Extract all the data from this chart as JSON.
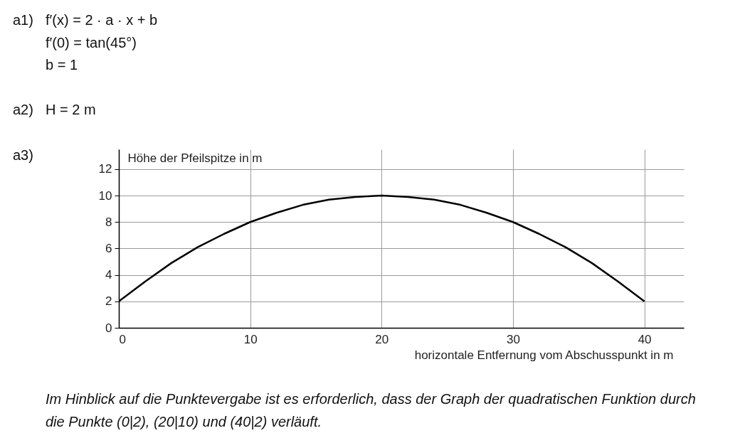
{
  "chart_data": {
    "type": "line",
    "xlabel": "horizontale Entfernung vom Abschusspunkt in m",
    "ylabel": "Höhe der Pfeilspitze in m",
    "x": [
      0,
      2,
      4,
      6,
      8,
      10,
      12,
      14,
      16,
      18,
      20,
      22,
      24,
      26,
      28,
      30,
      32,
      34,
      36,
      38,
      40
    ],
    "series": [
      {
        "color": "#000000",
        "values": [
          2,
          3.5,
          4.9,
          6.1,
          7.1,
          8,
          8.7,
          9.3,
          9.7,
          9.9,
          10,
          9.9,
          9.7,
          9.3,
          8.7,
          8,
          7.1,
          6.1,
          4.9,
          3.5,
          2
        ]
      }
    ],
    "xlim": [
      0,
      43
    ],
    "ylim": [
      0,
      13.5
    ],
    "xticks": [
      0,
      10,
      20,
      30,
      40
    ],
    "yticks": [
      0,
      2,
      4,
      6,
      8,
      10,
      12
    ],
    "grid": true,
    "marker": "none",
    "line_style": "solid",
    "legend": false,
    "annotations": [
      "a1)",
      "f′(x) = 2 · a · x + b",
      "f′(0) = tan(45°)",
      "b = 1",
      "a2)",
      "H = 2 m",
      "a3)",
      "Im Hinblick auf die Punktevergabe ist es erforderlich, dass der Graph der quadratischen Funktion durch die Punkte (0|2), (20|10) und (40|2) verläuft."
    ]
  }
}
